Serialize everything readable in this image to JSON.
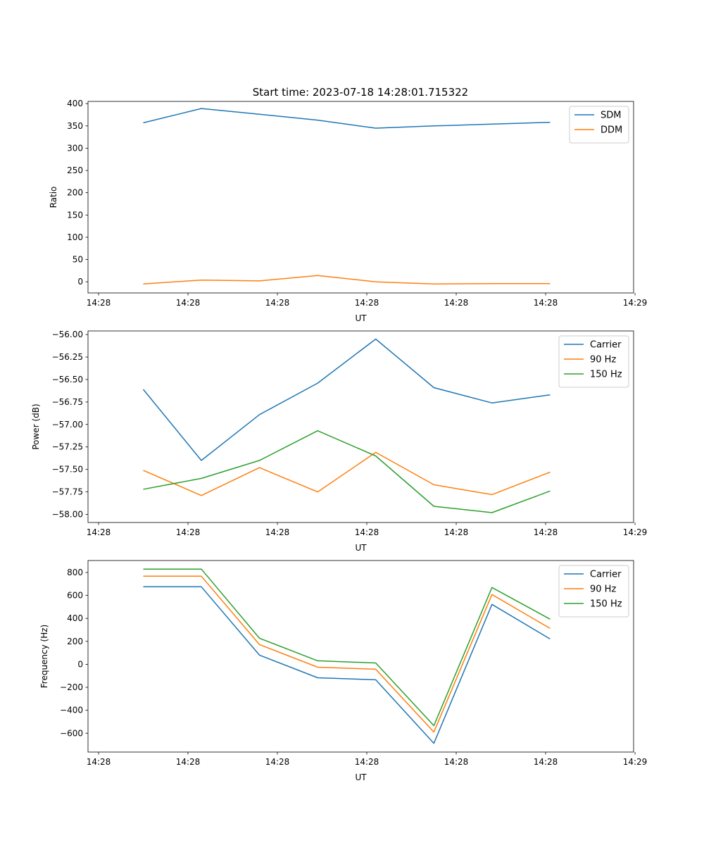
{
  "title": "Start time: 2023-07-18 14:28:01.715322",
  "colors": {
    "blue": "#1f77b4",
    "orange": "#ff7f0e",
    "green": "#2ca02c"
  },
  "chart_data": [
    {
      "type": "line",
      "title": "Start time: 2023-07-18 14:28:01.715322",
      "xlabel": "UT",
      "ylabel": "Ratio",
      "x_seconds_after_14_28": [
        5.0,
        11.5,
        18.0,
        24.5,
        31.0,
        37.5,
        44.0,
        50.5
      ],
      "xlim": [
        -1.18,
        59.84
      ],
      "xticks": [
        0,
        10,
        20,
        30,
        40,
        50,
        60
      ],
      "xtick_labels": [
        "14:28",
        "14:28",
        "14:28",
        "14:28",
        "14:28",
        "14:28",
        "14:29"
      ],
      "ylim": [
        -25,
        405
      ],
      "yticks": [
        0,
        50,
        100,
        150,
        200,
        250,
        300,
        350,
        400
      ],
      "ytick_labels": [
        "0",
        "50",
        "100",
        "150",
        "200",
        "250",
        "300",
        "350",
        "400"
      ],
      "legend": "top-right",
      "series": [
        {
          "name": "SDM",
          "color": "#1f77b4",
          "values": [
            357,
            389,
            376,
            363,
            345,
            350,
            354,
            358
          ]
        },
        {
          "name": "DDM",
          "color": "#ff7f0e",
          "values": [
            -5,
            4,
            2,
            14,
            0,
            -5,
            -4,
            -4
          ]
        }
      ]
    },
    {
      "type": "line",
      "xlabel": "UT",
      "ylabel": "Power (dB)",
      "x_seconds_after_14_28": [
        5.0,
        11.5,
        18.0,
        24.5,
        31.0,
        37.5,
        44.0,
        50.5
      ],
      "xlim": [
        -1.18,
        59.84
      ],
      "xticks": [
        0,
        10,
        20,
        30,
        40,
        50,
        60
      ],
      "xtick_labels": [
        "14:28",
        "14:28",
        "14:28",
        "14:28",
        "14:28",
        "14:28",
        "14:29"
      ],
      "ylim": [
        -58.09,
        -55.96
      ],
      "yticks": [
        -58.0,
        -57.75,
        -57.5,
        -57.25,
        -57.0,
        -56.75,
        -56.5,
        -56.25,
        -56.0
      ],
      "ytick_labels": [
        "−58.00",
        "−57.75",
        "−57.50",
        "−57.25",
        "−57.00",
        "−56.75",
        "−56.50",
        "−56.25",
        "−56.00"
      ],
      "legend": "top-right",
      "series": [
        {
          "name": "Carrier",
          "color": "#1f77b4",
          "values": [
            -56.61,
            -57.4,
            -56.89,
            -56.54,
            -56.05,
            -56.59,
            -56.76,
            -56.67
          ]
        },
        {
          "name": "90 Hz",
          "color": "#ff7f0e",
          "values": [
            -57.51,
            -57.79,
            -57.48,
            -57.75,
            -57.31,
            -57.67,
            -57.78,
            -57.53
          ]
        },
        {
          "name": "150 Hz",
          "color": "#2ca02c",
          "values": [
            -57.72,
            -57.6,
            -57.4,
            -57.07,
            -57.35,
            -57.91,
            -57.98,
            -57.74
          ]
        }
      ]
    },
    {
      "type": "line",
      "xlabel": "UT",
      "ylabel": "Frequency (Hz)",
      "x_seconds_after_14_28": [
        5.0,
        11.5,
        18.0,
        24.5,
        31.0,
        37.5,
        44.0,
        50.5
      ],
      "xlim": [
        -1.18,
        59.84
      ],
      "xticks": [
        0,
        10,
        20,
        30,
        40,
        50,
        60
      ],
      "xtick_labels": [
        "14:28",
        "14:28",
        "14:28",
        "14:28",
        "14:28",
        "14:28",
        "14:29"
      ],
      "ylim": [
        -764,
        904
      ],
      "yticks": [
        -600,
        -400,
        -200,
        0,
        200,
        400,
        600,
        800
      ],
      "ytick_labels": [
        "−600",
        "−400",
        "−200",
        "0",
        "200",
        "400",
        "600",
        "800"
      ],
      "legend": "top-right",
      "series": [
        {
          "name": "Carrier",
          "color": "#1f77b4",
          "values": [
            675,
            675,
            80,
            -117,
            -135,
            -688,
            522,
            221
          ]
        },
        {
          "name": "90 Hz",
          "color": "#ff7f0e",
          "values": [
            767,
            767,
            172,
            -25,
            -43,
            -590,
            608,
            313
          ]
        },
        {
          "name": "150 Hz",
          "color": "#2ca02c",
          "values": [
            829,
            829,
            227,
            31,
            12,
            -534,
            669,
            393
          ]
        }
      ]
    }
  ]
}
